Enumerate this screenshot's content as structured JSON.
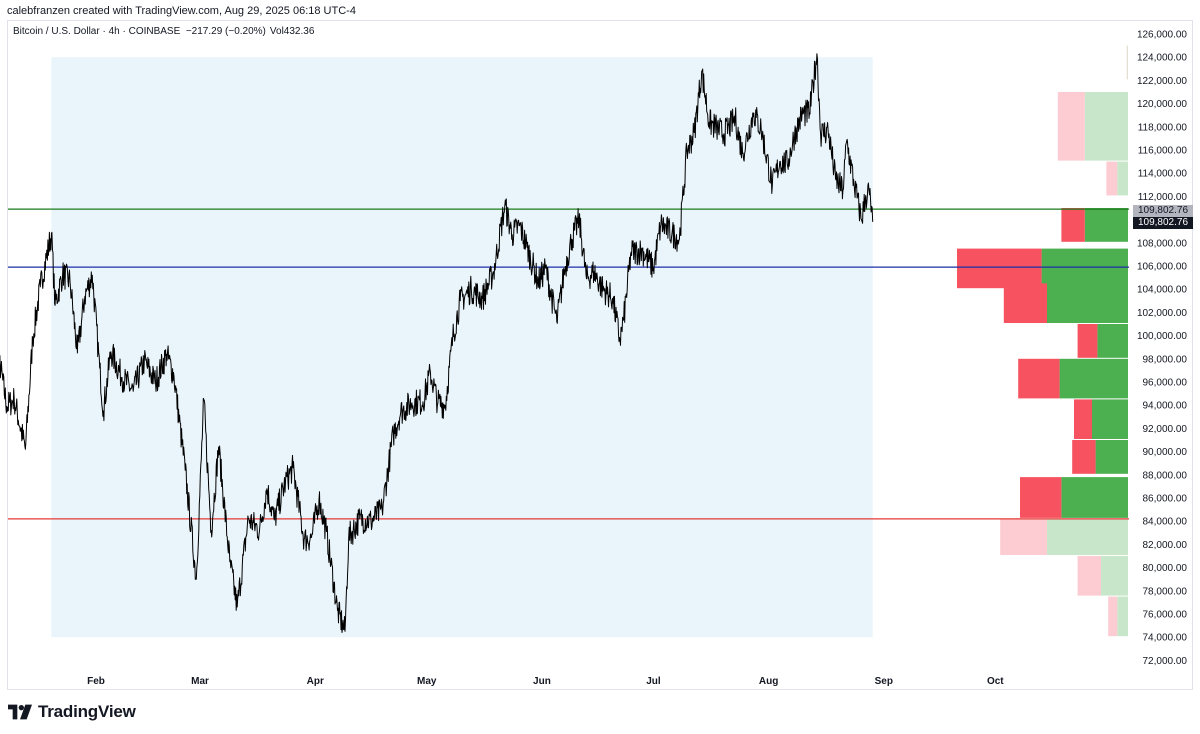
{
  "header": {
    "credit": "calebfranzen created with TradingView.com, Aug 29, 2025 06:18 UTC-4",
    "symbol_line": "Bitcoin / U.S. Dollar · 4h · COINBASE  −217.29 (−0.20%)",
    "volume": "Vol432.36"
  },
  "price_tags": {
    "grey": "109,802.76",
    "black": "109,802.76"
  },
  "footer": {
    "brand": "TradingView"
  },
  "colors": {
    "price_line": "#000000",
    "highlight_bg": "#eaf5fb",
    "green_level": "#1b7a1b",
    "blue_level": "#1c2fa8",
    "red_level": "#e53935",
    "vp_up_strong": "#4caf50",
    "vp_down_strong": "#f7525f",
    "vp_up_light": "#c8e6c9",
    "vp_down_light": "#fcccd2"
  },
  "chart_data": {
    "type": "line",
    "title": "Bitcoin / U.S. Dollar · 4h · COINBASE",
    "xlabel": "",
    "ylabel": "",
    "ylim": [
      72000,
      126000
    ],
    "y_ticks": [
      "126,000.00",
      "124,000.00",
      "122,000.00",
      "120,000.00",
      "118,000.00",
      "116,000.00",
      "114,000.00",
      "112,000.00",
      "110,000.00",
      "108,000.00",
      "106,000.00",
      "104,000.00",
      "102,000.00",
      "100,000.00",
      "98,000.00",
      "96,000.00",
      "94,000.00",
      "92,000.00",
      "90,000.00",
      "88,000.00",
      "86,000.00",
      "84,000.00",
      "82,000.00",
      "80,000.00",
      "78,000.00",
      "76,000.00",
      "74,000.00",
      "72,000.00"
    ],
    "x_ticks": [
      {
        "label": "Feb",
        "date": "2025-02-01"
      },
      {
        "label": "Mar",
        "date": "2025-03-01"
      },
      {
        "label": "Apr",
        "date": "2025-04-01"
      },
      {
        "label": "May",
        "date": "2025-05-01"
      },
      {
        "label": "Jun",
        "date": "2025-06-01"
      },
      {
        "label": "Jul",
        "date": "2025-07-01"
      },
      {
        "label": "Aug",
        "date": "2025-08-01"
      },
      {
        "label": "Sep",
        "date": "2025-09-01"
      },
      {
        "label": "Oct",
        "date": "2025-10-01"
      }
    ],
    "x_range": [
      "2025-01-03",
      "2025-10-24"
    ],
    "series": [
      {
        "values": [
          [
            "2025-01-03",
            95500
          ],
          [
            "2025-01-06",
            97800
          ],
          [
            "2025-01-08",
            93900
          ],
          [
            "2025-01-10",
            94500
          ],
          [
            "2025-01-13",
            90200
          ],
          [
            "2025-01-15",
            99800
          ],
          [
            "2025-01-17",
            104200
          ],
          [
            "2025-01-20",
            108800
          ],
          [
            "2025-01-21",
            102600
          ],
          [
            "2025-01-23",
            105300
          ],
          [
            "2025-01-25",
            104700
          ],
          [
            "2025-01-27",
            98500
          ],
          [
            "2025-01-29",
            103400
          ],
          [
            "2025-01-31",
            105200
          ],
          [
            "2025-02-02",
            97200
          ],
          [
            "2025-02-03",
            93500
          ],
          [
            "2025-02-05",
            98600
          ],
          [
            "2025-02-08",
            96400
          ],
          [
            "2025-02-11",
            95200
          ],
          [
            "2025-02-14",
            97800
          ],
          [
            "2025-02-17",
            96000
          ],
          [
            "2025-02-20",
            98400
          ],
          [
            "2025-02-22",
            96500
          ],
          [
            "2025-02-25",
            88400
          ],
          [
            "2025-02-28",
            79000
          ],
          [
            "2025-03-02",
            94500
          ],
          [
            "2025-03-04",
            83200
          ],
          [
            "2025-03-06",
            90400
          ],
          [
            "2025-03-09",
            80500
          ],
          [
            "2025-03-11",
            76600
          ],
          [
            "2025-03-14",
            84200
          ],
          [
            "2025-03-17",
            83200
          ],
          [
            "2025-03-19",
            86800
          ],
          [
            "2025-03-21",
            84100
          ],
          [
            "2025-03-24",
            87400
          ],
          [
            "2025-03-26",
            88600
          ],
          [
            "2025-03-29",
            82400
          ],
          [
            "2025-03-31",
            82600
          ],
          [
            "2025-04-02",
            85900
          ],
          [
            "2025-04-04",
            83100
          ],
          [
            "2025-04-07",
            76300
          ],
          [
            "2025-04-09",
            74500
          ],
          [
            "2025-04-10",
            82600
          ],
          [
            "2025-04-13",
            84200
          ],
          [
            "2025-04-16",
            84000
          ],
          [
            "2025-04-19",
            85000
          ],
          [
            "2025-04-22",
            91500
          ],
          [
            "2025-04-24",
            93400
          ],
          [
            "2025-04-27",
            94200
          ],
          [
            "2025-04-30",
            94300
          ],
          [
            "2025-05-02",
            96800
          ],
          [
            "2025-05-04",
            94200
          ],
          [
            "2025-05-06",
            94000
          ],
          [
            "2025-05-08",
            99800
          ],
          [
            "2025-05-10",
            103000
          ],
          [
            "2025-05-13",
            104000
          ],
          [
            "2025-05-16",
            103200
          ],
          [
            "2025-05-19",
            105500
          ],
          [
            "2025-05-22",
            111200
          ],
          [
            "2025-05-24",
            108700
          ],
          [
            "2025-05-26",
            109500
          ],
          [
            "2025-05-28",
            107600
          ],
          [
            "2025-05-31",
            104600
          ],
          [
            "2025-06-02",
            105800
          ],
          [
            "2025-06-05",
            101200
          ],
          [
            "2025-06-07",
            105500
          ],
          [
            "2025-06-09",
            108300
          ],
          [
            "2025-06-11",
            110000
          ],
          [
            "2025-06-13",
            104900
          ],
          [
            "2025-06-15",
            105500
          ],
          [
            "2025-06-17",
            104200
          ],
          [
            "2025-06-20",
            103200
          ],
          [
            "2025-06-22",
            99600
          ],
          [
            "2025-06-23",
            101400
          ],
          [
            "2025-06-25",
            107200
          ],
          [
            "2025-06-28",
            107300
          ],
          [
            "2025-07-01",
            105800
          ],
          [
            "2025-07-03",
            109600
          ],
          [
            "2025-07-06",
            108800
          ],
          [
            "2025-07-08",
            108300
          ],
          [
            "2025-07-10",
            115900
          ],
          [
            "2025-07-12",
            117500
          ],
          [
            "2025-07-14",
            122800
          ],
          [
            "2025-07-16",
            118400
          ],
          [
            "2025-07-18",
            117900
          ],
          [
            "2025-07-20",
            117400
          ],
          [
            "2025-07-23",
            118700
          ],
          [
            "2025-07-25",
            115700
          ],
          [
            "2025-07-28",
            119200
          ],
          [
            "2025-07-30",
            117800
          ],
          [
            "2025-08-02",
            112900
          ],
          [
            "2025-08-04",
            115000
          ],
          [
            "2025-08-06",
            114800
          ],
          [
            "2025-08-08",
            117300
          ],
          [
            "2025-08-10",
            119100
          ],
          [
            "2025-08-12",
            119200
          ],
          [
            "2025-08-14",
            124300
          ],
          [
            "2025-08-15",
            117400
          ],
          [
            "2025-08-17",
            117700
          ],
          [
            "2025-08-19",
            113500
          ],
          [
            "2025-08-21",
            112500
          ],
          [
            "2025-08-22",
            116800
          ],
          [
            "2025-08-24",
            113100
          ],
          [
            "2025-08-26",
            110000
          ],
          [
            "2025-08-27",
            111800
          ],
          [
            "2025-08-28",
            112500
          ],
          [
            "2025-08-29",
            109803
          ]
        ]
      }
    ],
    "horizontal_levels": [
      {
        "value": 110900,
        "color": "green"
      },
      {
        "value": 105900,
        "color": "blue"
      },
      {
        "value": 84200,
        "color": "red"
      }
    ],
    "highlight_range": {
      "from": "2025-01-20",
      "to": "2025-08-29",
      "y_from": 74000,
      "y_to": 124000
    },
    "volume_profile": {
      "rows": [
        {
          "from": 122000,
          "to": 125000,
          "up": 0.004,
          "down": 0.003,
          "style": "light"
        },
        {
          "from": 115000,
          "to": 121000,
          "up": 0.24,
          "down": 0.15,
          "style": "light"
        },
        {
          "from": 112000,
          "to": 115000,
          "up": 0.06,
          "down": 0.06,
          "style": "light"
        },
        {
          "from": 108000,
          "to": 111000,
          "up": 0.24,
          "down": 0.13,
          "style": "strong"
        },
        {
          "from": 104000,
          "to": 107500,
          "up": 0.48,
          "down": 0.47,
          "style": "strong"
        },
        {
          "from": 101000,
          "to": 104500,
          "up": 0.45,
          "down": 0.24,
          "style": "strong"
        },
        {
          "from": 98000,
          "to": 101000,
          "up": 0.17,
          "down": 0.11,
          "style": "strong"
        },
        {
          "from": 94500,
          "to": 98000,
          "up": 0.38,
          "down": 0.23,
          "style": "strong"
        },
        {
          "from": 91000,
          "to": 94500,
          "up": 0.2,
          "down": 0.1,
          "style": "strong"
        },
        {
          "from": 88000,
          "to": 91000,
          "up": 0.18,
          "down": 0.13,
          "style": "strong"
        },
        {
          "from": 84200,
          "to": 87800,
          "up": 0.37,
          "down": 0.23,
          "style": "strong"
        },
        {
          "from": 81000,
          "to": 84200,
          "up": 0.45,
          "down": 0.26,
          "style": "light"
        },
        {
          "from": 77500,
          "to": 81000,
          "up": 0.15,
          "down": 0.13,
          "style": "light"
        },
        {
          "from": 74000,
          "to": 77500,
          "up": 0.06,
          "down": 0.05,
          "style": "light"
        }
      ]
    },
    "last_price": 109802.76
  }
}
